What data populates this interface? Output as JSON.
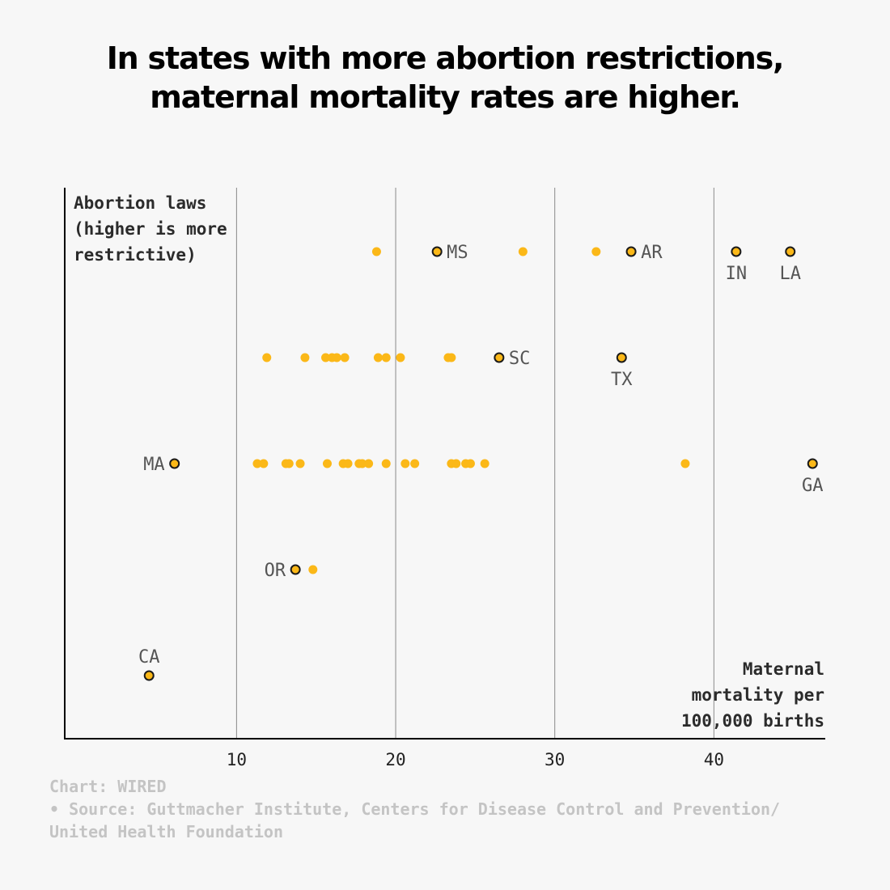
{
  "title": "In states with more abortion restrictions, maternal mortality rates are higher.",
  "credit": "Chart: WIRED",
  "source": "• Source: Guttmacher Institute, Centers for Disease Control and Prevention/",
  "source_cont": "United Health Foundation",
  "colors": {
    "dot": "#fbb818",
    "dot_outline": "#1a1a1a",
    "gridline": "#8a8a8a",
    "axis": "#000000",
    "label": "#555555",
    "axis_title": "#2b2b2b",
    "credits": "#c4c4c4",
    "background": "#f7f7f7"
  },
  "chart_data": {
    "type": "scatter",
    "ylabel_lines": [
      "Abortion laws",
      "(higher is more",
      "restrictive)"
    ],
    "xlabel_lines": [
      "Maternal",
      "mortality per",
      "100,000 births"
    ],
    "xlim": [
      -0.8,
      47
    ],
    "x_ticks": [
      10,
      20,
      30,
      40
    ],
    "x_tick_labels": [
      "10",
      "20",
      "30",
      "40"
    ],
    "y_levels": 5,
    "grid": "vertical",
    "rows": [
      {
        "level": 5,
        "points": [
          18.8,
          28.0,
          32.6
        ],
        "highlighted": [
          {
            "label": "MS",
            "x": 22.6,
            "label_pos": "right"
          },
          {
            "label": "AR",
            "x": 34.8,
            "label_pos": "right"
          },
          {
            "label": "IN",
            "x": 41.4,
            "label_pos": "below"
          },
          {
            "label": "LA",
            "x": 44.8,
            "label_pos": "below"
          }
        ]
      },
      {
        "level": 4,
        "points": [
          11.9,
          14.3,
          15.6,
          16.0,
          16.3,
          16.8,
          18.9,
          19.4,
          20.3,
          23.3,
          23.5
        ],
        "highlighted": [
          {
            "label": "SC",
            "x": 26.5,
            "label_pos": "right"
          },
          {
            "label": "TX",
            "x": 34.2,
            "label_pos": "below"
          }
        ]
      },
      {
        "level": 3,
        "points": [
          11.3,
          11.7,
          13.1,
          13.3,
          14.0,
          15.7,
          16.7,
          17.0,
          17.7,
          17.9,
          18.3,
          19.4,
          20.6,
          21.2,
          23.5,
          23.8,
          24.4,
          24.7,
          25.6,
          38.2
        ],
        "highlighted": [
          {
            "label": "MA",
            "x": 6.1,
            "label_pos": "left"
          },
          {
            "label": "GA",
            "x": 46.2,
            "label_pos": "below"
          }
        ]
      },
      {
        "level": 2,
        "points": [
          14.8
        ],
        "highlighted": [
          {
            "label": "OR",
            "x": 13.7,
            "label_pos": "left"
          }
        ]
      },
      {
        "level": 1,
        "points": [],
        "highlighted": [
          {
            "label": "CA",
            "x": 4.5,
            "label_pos": "above"
          }
        ]
      }
    ]
  }
}
